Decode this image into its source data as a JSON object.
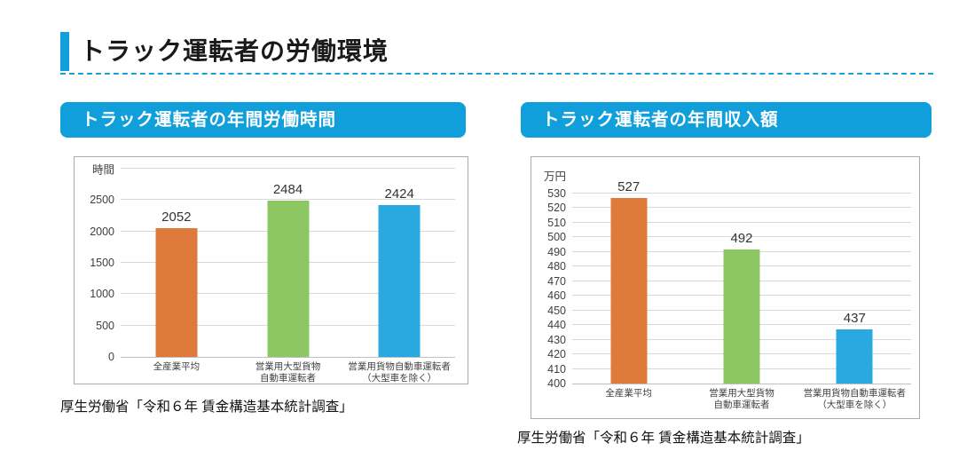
{
  "page": {
    "title": "トラック運転者の労働環境"
  },
  "colors": {
    "accent_blue": "#119fdb",
    "bar_orange": "#e0793c",
    "bar_green": "#8dc763",
    "bar_blue": "#29a9e0",
    "gridline": "#d9d9d9"
  },
  "sections": [
    {
      "header": "トラック運転者の年間労働時間",
      "source": "厚生労働省「令和６年 賃金構造基本統計調査」"
    },
    {
      "header": "トラック運転者の年間収入額",
      "source": "厚生労働省「令和６年 賃金構造基本統計調査」"
    }
  ],
  "chart_data": [
    {
      "type": "bar",
      "title": "トラック運転者の年間労働時間",
      "ylabel": "時間",
      "ylabel_placement": "top-line",
      "categories": [
        "全産業平均",
        "営業用大型貨物\n自動車運転者",
        "営業用貨物自動車運転者\n（大型車を除く）"
      ],
      "values": [
        2052,
        2484,
        2424
      ],
      "bar_colors": [
        "#e0793c",
        "#8dc763",
        "#29a9e0"
      ],
      "ymin": 0,
      "ytop": 3000,
      "yticks": [
        0,
        500,
        1000,
        1500,
        2000,
        2500
      ],
      "grid": true,
      "legend": false
    },
    {
      "type": "bar",
      "title": "トラック運転者の年間収入額",
      "ylabel": "万円",
      "ylabel_placement": "above-top",
      "categories": [
        "全産業平均",
        "営業用大型貨物\n自動車運転者",
        "営業用貨物自動車運転者\n（大型車を除く）"
      ],
      "values": [
        527,
        492,
        437
      ],
      "bar_colors": [
        "#e0793c",
        "#8dc763",
        "#29a9e0"
      ],
      "ymin": 400,
      "ytop": 530,
      "yticks": [
        400,
        410,
        420,
        430,
        440,
        450,
        460,
        470,
        480,
        490,
        500,
        510,
        520,
        530
      ],
      "grid": true,
      "legend": false
    }
  ]
}
